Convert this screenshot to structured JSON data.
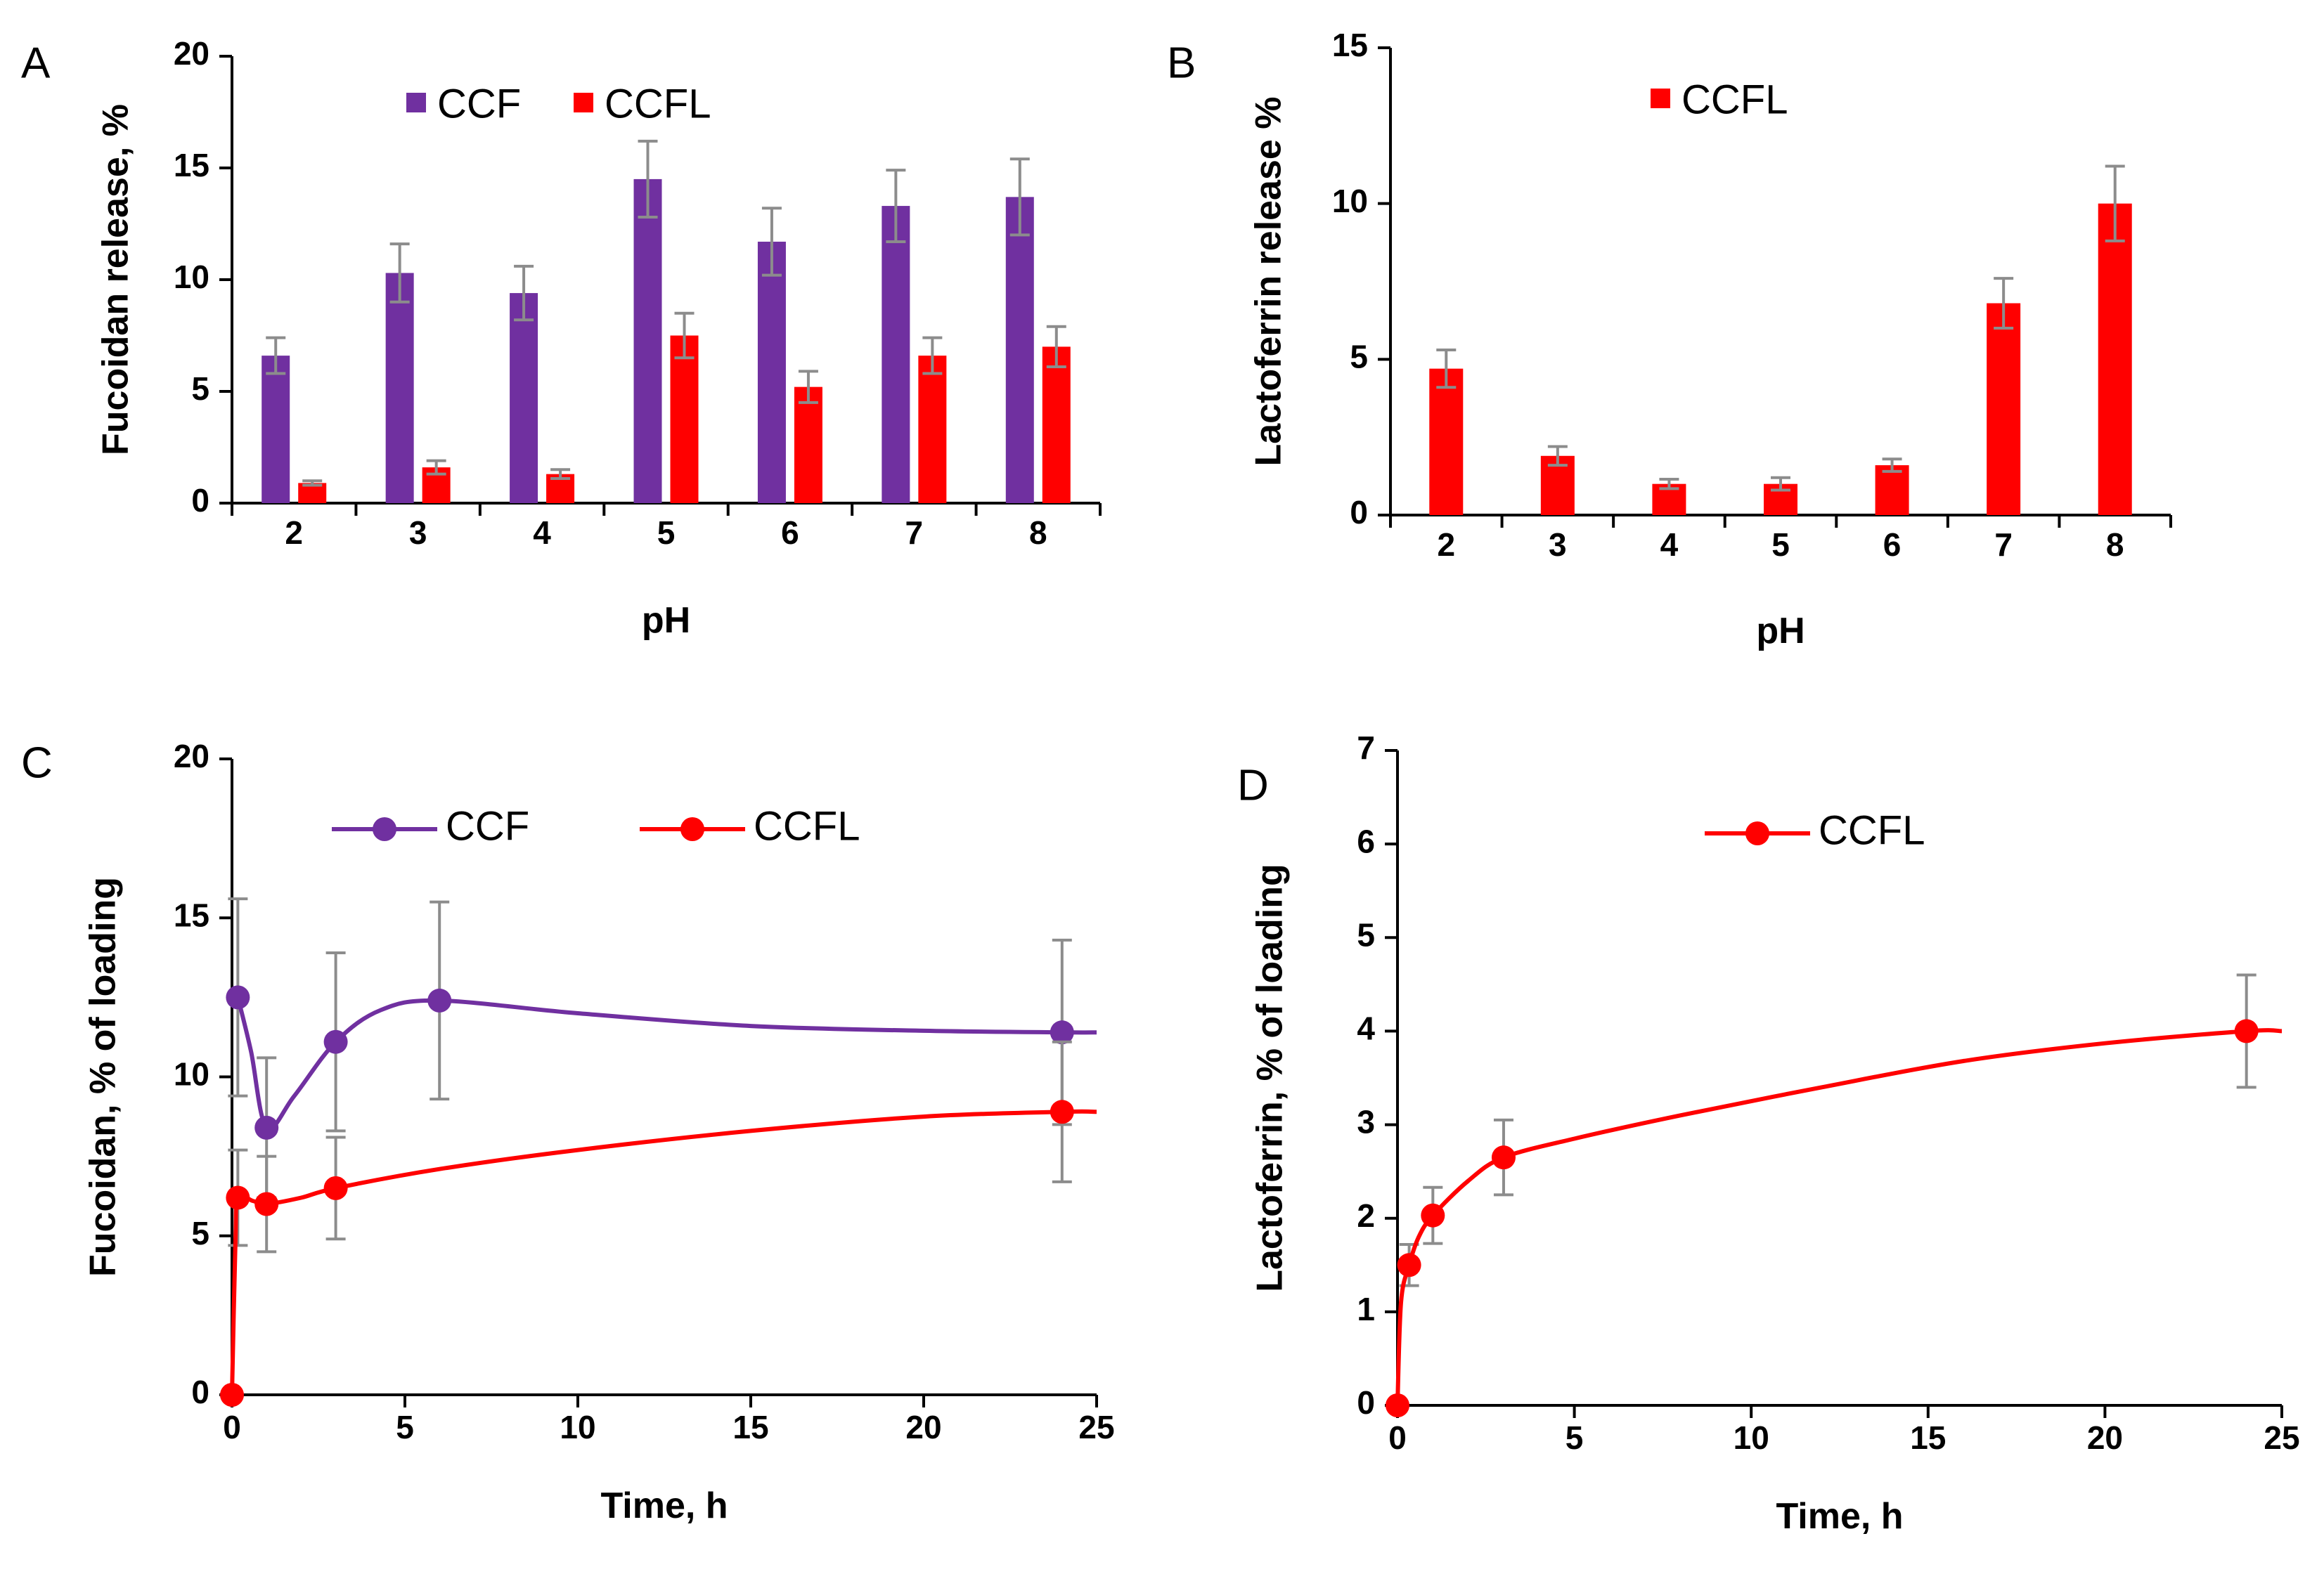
{
  "colors": {
    "CCF": "#7030a0",
    "CCFL": "#ff0000",
    "error": "#8c8c8c"
  },
  "chart_data": [
    {
      "id": "A",
      "type": "bar",
      "panel_label": "A",
      "categories": [
        "2",
        "3",
        "4",
        "5",
        "6",
        "7",
        "8"
      ],
      "xlabel": "pH",
      "ylabel": "Fucoidan  release, %",
      "ylim": [
        0,
        20
      ],
      "yticks": [
        "0",
        "5",
        "10",
        "15",
        "20"
      ],
      "legend_position": "top",
      "series": [
        {
          "name": "CCF",
          "color": "#7030a0",
          "values": [
            6.6,
            10.3,
            9.4,
            14.5,
            11.7,
            13.3,
            13.7
          ],
          "errors": [
            0.8,
            1.3,
            1.2,
            1.7,
            1.5,
            1.6,
            1.7
          ]
        },
        {
          "name": "CCFL",
          "color": "#ff0000",
          "values": [
            0.9,
            1.6,
            1.3,
            7.5,
            5.2,
            6.6,
            7.0
          ],
          "errors": [
            0.1,
            0.3,
            0.2,
            1.0,
            0.7,
            0.8,
            0.9
          ]
        }
      ]
    },
    {
      "id": "B",
      "type": "bar",
      "panel_label": "B",
      "categories": [
        "2",
        "3",
        "4",
        "5",
        "6",
        "7",
        "8"
      ],
      "xlabel": "pH",
      "ylabel": "Lactoferrin release %",
      "ylim": [
        0,
        15
      ],
      "yticks": [
        "0",
        "5",
        "10",
        "15"
      ],
      "legend_position": "top",
      "series": [
        {
          "name": "CCFL",
          "color": "#ff0000",
          "values": [
            4.7,
            1.9,
            1.0,
            1.0,
            1.6,
            6.8,
            10.0
          ],
          "errors": [
            0.6,
            0.3,
            0.15,
            0.2,
            0.2,
            0.8,
            1.2
          ]
        }
      ]
    },
    {
      "id": "C",
      "type": "line",
      "panel_label": "C",
      "xlabel": "Time, h",
      "ylabel": "Fucoidan, %  of loading",
      "xlim": [
        0,
        25
      ],
      "ylim": [
        0,
        20
      ],
      "xticks": [
        "0",
        "5",
        "10",
        "15",
        "20",
        "25"
      ],
      "yticks": [
        "0",
        "5",
        "10",
        "15",
        "20"
      ],
      "legend_position": "top",
      "series": [
        {
          "name": "CCF",
          "color": "#7030a0",
          "x": [
            0.17,
            1,
            3,
            6,
            24
          ],
          "y": [
            12.5,
            8.4,
            11.1,
            12.4,
            11.4
          ],
          "errors": [
            3.1,
            2.2,
            2.8,
            3.1,
            2.9
          ],
          "curve": [
            [
              0.17,
              12.5
            ],
            [
              0.55,
              10.8
            ],
            [
              1,
              8.4
            ],
            [
              1.8,
              9.4
            ],
            [
              3,
              11.1
            ],
            [
              4.3,
              12.1
            ],
            [
              6,
              12.4
            ],
            [
              10,
              12.0
            ],
            [
              15,
              11.6
            ],
            [
              20,
              11.45
            ],
            [
              24,
              11.4
            ],
            [
              25,
              11.4
            ]
          ]
        },
        {
          "name": "CCFL",
          "color": "#ff0000",
          "x": [
            0,
            0.17,
            1,
            3,
            24
          ],
          "y": [
            0,
            6.2,
            6.0,
            6.5,
            8.9
          ],
          "errors": [
            0,
            1.5,
            1.5,
            1.6,
            2.2
          ],
          "curve": [
            [
              0,
              0
            ],
            [
              0.1,
              4.8
            ],
            [
              0.17,
              6.2
            ],
            [
              0.6,
              6.1
            ],
            [
              1,
              6.0
            ],
            [
              2,
              6.2
            ],
            [
              3,
              6.5
            ],
            [
              6,
              7.1
            ],
            [
              10,
              7.7
            ],
            [
              15,
              8.3
            ],
            [
              20,
              8.75
            ],
            [
              24,
              8.9
            ],
            [
              25,
              8.9
            ]
          ]
        }
      ]
    },
    {
      "id": "D",
      "type": "line",
      "panel_label": "D",
      "xlabel": "Time, h",
      "ylabel": "Lactoferrin, % of loading",
      "xlim": [
        0,
        25
      ],
      "ylim": [
        0,
        7
      ],
      "xticks": [
        "0",
        "5",
        "10",
        "15",
        "20",
        "25"
      ],
      "yticks": [
        "0",
        "1",
        "2",
        "3",
        "4",
        "5",
        "6",
        "7"
      ],
      "legend_position": "top",
      "series": [
        {
          "name": "CCFL",
          "color": "#ff0000",
          "x": [
            0,
            0.33,
            1,
            3,
            24
          ],
          "y": [
            0,
            1.5,
            2.03,
            2.65,
            4.0
          ],
          "errors": [
            0,
            0.22,
            0.3,
            0.4,
            0.6
          ],
          "curve": [
            [
              0,
              0
            ],
            [
              0.1,
              1.1
            ],
            [
              0.33,
              1.5
            ],
            [
              0.6,
              1.8
            ],
            [
              1,
              2.03
            ],
            [
              2,
              2.4
            ],
            [
              3,
              2.65
            ],
            [
              5,
              2.85
            ],
            [
              8,
              3.1
            ],
            [
              12,
              3.4
            ],
            [
              16,
              3.68
            ],
            [
              20,
              3.87
            ],
            [
              24,
              4.0
            ],
            [
              25,
              4.0
            ]
          ]
        }
      ]
    }
  ]
}
